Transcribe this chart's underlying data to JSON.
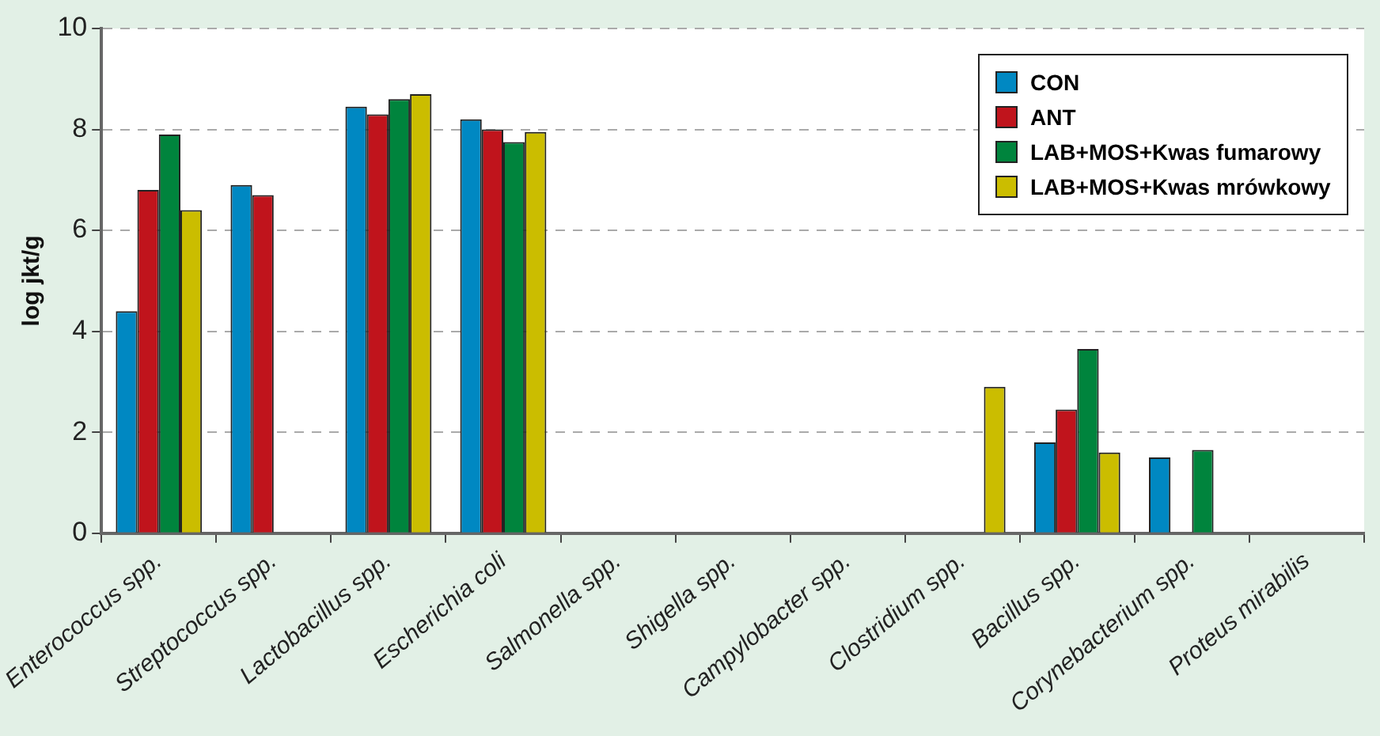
{
  "chart_data": {
    "type": "bar",
    "ylabel": "log jkt/g",
    "categories": [
      "Enterococcus spp.",
      "Streptococcus spp.",
      "Lactobacillus spp.",
      "Escherichia coli",
      "Salmonella spp.",
      "Shigella spp.",
      "Campylobacter spp.",
      "Clostridium spp.",
      "Bacillus spp.",
      "Corynebacterium spp.",
      "Proteus mirabilis"
    ],
    "series": [
      {
        "name": "CON",
        "color": "#0088c2",
        "values": [
          4.4,
          6.9,
          8.45,
          8.2,
          null,
          null,
          null,
          null,
          1.8,
          1.5,
          null
        ]
      },
      {
        "name": "ANT",
        "color": "#c0141c",
        "values": [
          6.8,
          6.7,
          8.3,
          8.0,
          null,
          null,
          null,
          null,
          2.45,
          null,
          null
        ]
      },
      {
        "name": "LAB+MOS+Kwas fumarowy",
        "color": "#00843d",
        "values": [
          7.9,
          null,
          8.6,
          7.75,
          null,
          null,
          null,
          null,
          3.65,
          1.65,
          null
        ]
      },
      {
        "name": "LAB+MOS+Kwas mrówkowy",
        "color": "#cbbd00",
        "values": [
          6.4,
          null,
          8.7,
          7.95,
          null,
          null,
          null,
          2.9,
          1.6,
          null,
          null
        ]
      }
    ],
    "ylim": [
      0,
      10
    ],
    "yticks": [
      0,
      2,
      4,
      6,
      8,
      10
    ],
    "grid": "y",
    "legend": "top right"
  }
}
